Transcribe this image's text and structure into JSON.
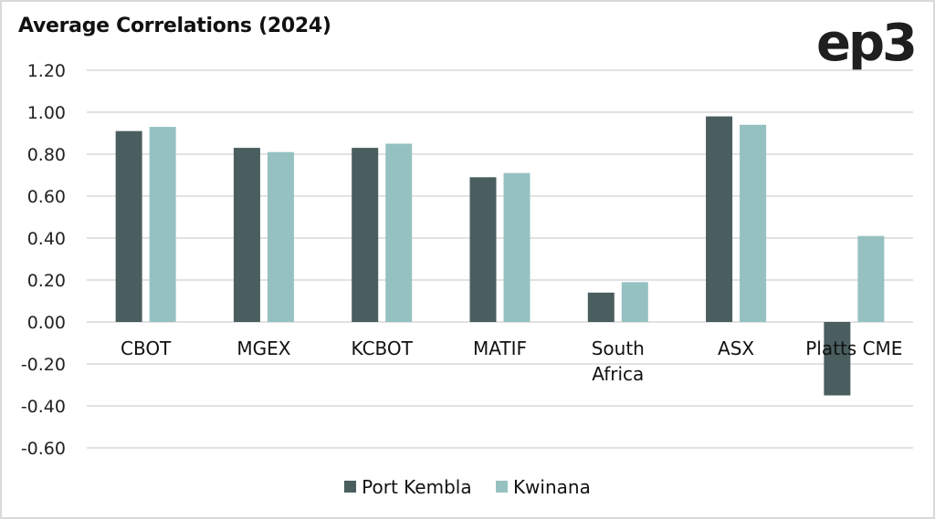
{
  "header": {
    "title": "Average Correlations (2024)",
    "logo_text": "ep3"
  },
  "colors": {
    "port_kembla": "#4a5e5f",
    "kwinana": "#96c1c1",
    "grid": "#d9d9d9"
  },
  "chart_data": {
    "type": "bar",
    "title": "Average Correlations (2024)",
    "xlabel": "",
    "ylabel": "",
    "categories": [
      "CBOT",
      "MGEX",
      "KCBOT",
      "MATIF",
      "South Africa",
      "ASX",
      "Platts CME"
    ],
    "category_lines": [
      [
        "CBOT"
      ],
      [
        "MGEX"
      ],
      [
        "KCBOT"
      ],
      [
        "MATIF"
      ],
      [
        "South",
        "Africa"
      ],
      [
        "ASX"
      ],
      [
        "Platts CME"
      ]
    ],
    "series": [
      {
        "name": "Port Kembla",
        "color": "#4a5e5f",
        "values": [
          0.91,
          0.83,
          0.83,
          0.69,
          0.14,
          0.98,
          -0.35
        ]
      },
      {
        "name": "Kwinana",
        "color": "#96c1c1",
        "values": [
          0.93,
          0.81,
          0.85,
          0.71,
          0.19,
          0.94,
          0.41
        ]
      }
    ],
    "ylim": [
      -0.6,
      1.2
    ],
    "yticks": [
      1.2,
      1.0,
      0.8,
      0.6,
      0.4,
      0.2,
      0.0,
      -0.2,
      -0.4,
      -0.6
    ],
    "ytick_labels": [
      "1.20",
      "1.00",
      "0.80",
      "0.60",
      "0.40",
      "0.20",
      "0.00",
      "-0.20",
      "-0.40",
      "-0.60"
    ],
    "grid": true,
    "legend_position": "bottom-center"
  }
}
